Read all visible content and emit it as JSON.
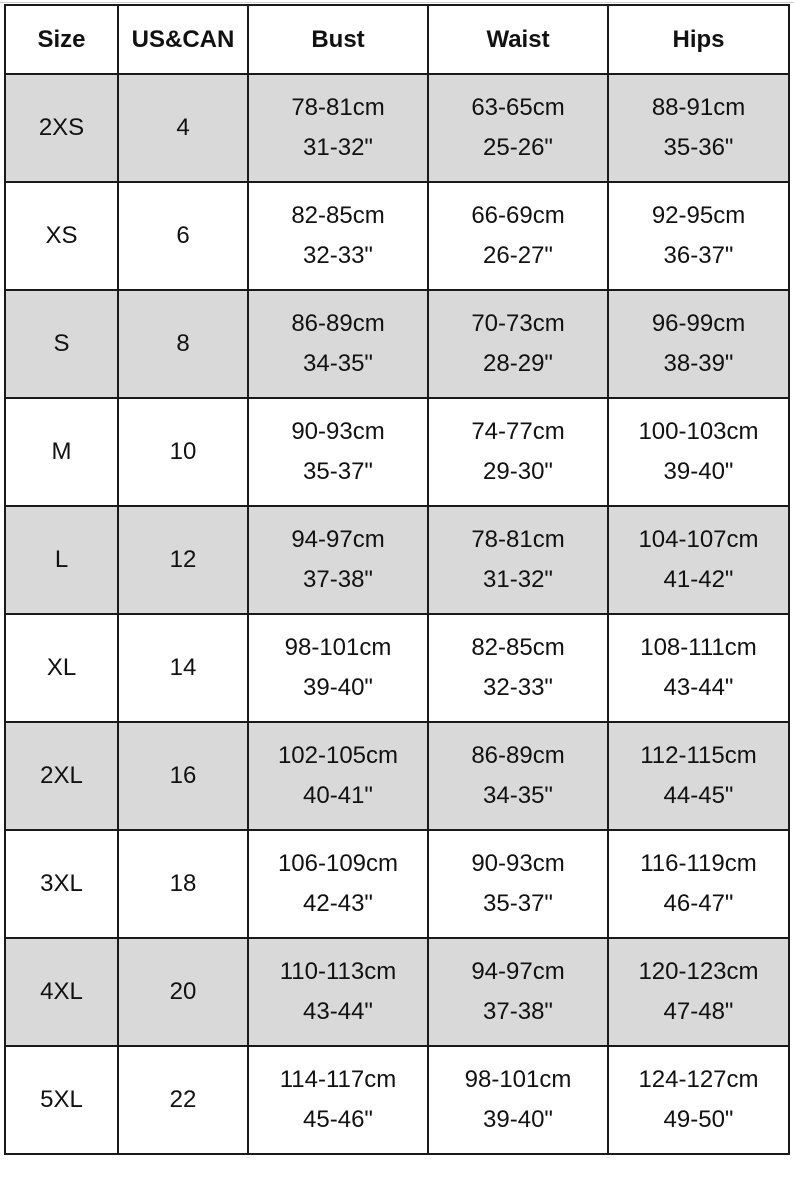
{
  "headers": [
    "Size",
    "US&CAN",
    "Bust",
    "Waist",
    "Hips"
  ],
  "row_fill": "#d9d9d9",
  "rows": [
    {
      "size": "2XS",
      "us": "4",
      "bust_cm": "78-81cm",
      "bust_in": "31-32\"",
      "waist_cm": "63-65cm",
      "waist_in": "25-26\"",
      "hips_cm": "88-91cm",
      "hips_in": "35-36\"",
      "shaded": true
    },
    {
      "size": "XS",
      "us": "6",
      "bust_cm": "82-85cm",
      "bust_in": "32-33\"",
      "waist_cm": "66-69cm",
      "waist_in": "26-27\"",
      "hips_cm": "92-95cm",
      "hips_in": "36-37\"",
      "shaded": false
    },
    {
      "size": "S",
      "us": "8",
      "bust_cm": "86-89cm",
      "bust_in": "34-35\"",
      "waist_cm": "70-73cm",
      "waist_in": "28-29\"",
      "hips_cm": "96-99cm",
      "hips_in": "38-39\"",
      "shaded": true
    },
    {
      "size": "M",
      "us": "10",
      "bust_cm": "90-93cm",
      "bust_in": "35-37\"",
      "waist_cm": "74-77cm",
      "waist_in": "29-30\"",
      "hips_cm": "100-103cm",
      "hips_in": "39-40\"",
      "shaded": false
    },
    {
      "size": "L",
      "us": "12",
      "bust_cm": "94-97cm",
      "bust_in": "37-38\"",
      "waist_cm": "78-81cm",
      "waist_in": "31-32\"",
      "hips_cm": "104-107cm",
      "hips_in": "41-42\"",
      "shaded": true
    },
    {
      "size": "XL",
      "us": "14",
      "bust_cm": "98-101cm",
      "bust_in": "39-40\"",
      "waist_cm": "82-85cm",
      "waist_in": "32-33\"",
      "hips_cm": "108-111cm",
      "hips_in": "43-44\"",
      "shaded": false
    },
    {
      "size": "2XL",
      "us": "16",
      "bust_cm": "102-105cm",
      "bust_in": "40-41\"",
      "waist_cm": "86-89cm",
      "waist_in": "34-35\"",
      "hips_cm": "112-115cm",
      "hips_in": "44-45\"",
      "shaded": true
    },
    {
      "size": "3XL",
      "us": "18",
      "bust_cm": "106-109cm",
      "bust_in": "42-43\"",
      "waist_cm": "90-93cm",
      "waist_in": "35-37\"",
      "hips_cm": "116-119cm",
      "hips_in": "46-47\"",
      "shaded": false
    },
    {
      "size": "4XL",
      "us": "20",
      "bust_cm": "110-113cm",
      "bust_in": "43-44\"",
      "waist_cm": "94-97cm",
      "waist_in": "37-38\"",
      "hips_cm": "120-123cm",
      "hips_in": "47-48\"",
      "shaded": true
    },
    {
      "size": "5XL",
      "us": "22",
      "bust_cm": "114-117cm",
      "bust_in": "45-46\"",
      "waist_cm": "98-101cm",
      "waist_in": "39-40\"",
      "hips_cm": "124-127cm",
      "hips_in": "49-50\"",
      "shaded": false
    }
  ]
}
